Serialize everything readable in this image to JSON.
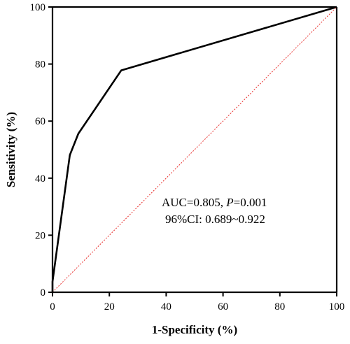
{
  "chart_data": {
    "type": "line",
    "xlabel": "1-Specificity (%)",
    "ylabel": "Sensitivity (%)",
    "xlim": [
      0,
      100
    ],
    "ylim": [
      0,
      100
    ],
    "x_ticks": [
      "0",
      "20",
      "40",
      "60",
      "80",
      "100"
    ],
    "y_ticks": [
      "0",
      "20",
      "40",
      "60",
      "80",
      "100"
    ],
    "series": [
      {
        "x": [
          0,
          0,
          6.1,
          9.1,
          24.2,
          100
        ],
        "y": [
          0,
          3.7,
          48.1,
          55.6,
          77.8,
          100
        ],
        "color": "#000000",
        "style": "solid"
      },
      {
        "x": [
          0,
          100
        ],
        "y": [
          0,
          100
        ],
        "color": "#e8312f",
        "style": "dotted"
      }
    ],
    "annotations": {
      "auc_prefix": "AUC=0.805, ",
      "p_symbol": "P",
      "p_value": "=0.001",
      "ci": "96%CI: 0.689~0.922"
    },
    "grid": false,
    "legend": "none"
  }
}
